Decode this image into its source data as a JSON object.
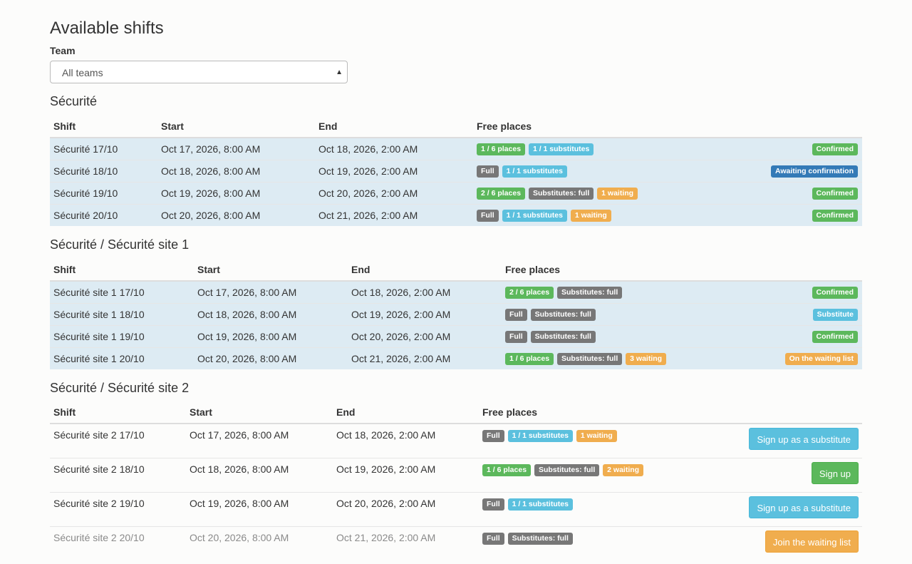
{
  "page": {
    "title": "Available shifts",
    "team_label": "Team",
    "team_select_value": "All teams"
  },
  "headers": {
    "shift": "Shift",
    "start": "Start",
    "end": "End",
    "free": "Free places"
  },
  "colors": {
    "green": "#5cb85c",
    "cyan": "#5bc0de",
    "gray": "#777777",
    "orange": "#f0ad4e",
    "blue": "#337ab7",
    "row_highlight": "#ddebf3"
  },
  "sections": [
    {
      "title": "Sécurité",
      "rows": [
        {
          "shift": "Sécurité 17/10",
          "start": "Oct 17, 2026, 8:00 AM",
          "end": "Oct 18, 2026, 2:00 AM",
          "badges": [
            {
              "text": "1 / 6 places",
              "color": "green"
            },
            {
              "text": "1 / 1 substitutes",
              "color": "cyan"
            }
          ],
          "status": {
            "text": "Confirmed",
            "color": "green"
          }
        },
        {
          "shift": "Sécurité 18/10",
          "start": "Oct 18, 2026, 8:00 AM",
          "end": "Oct 19, 2026, 2:00 AM",
          "badges": [
            {
              "text": "Full",
              "color": "gray"
            },
            {
              "text": "1 / 1 substitutes",
              "color": "cyan"
            }
          ],
          "status": {
            "text": "Awaiting confirmation",
            "color": "blue"
          }
        },
        {
          "shift": "Sécurité 19/10",
          "start": "Oct 19, 2026, 8:00 AM",
          "end": "Oct 20, 2026, 2:00 AM",
          "badges": [
            {
              "text": "2 / 6 places",
              "color": "green"
            },
            {
              "text": "Substitutes: full",
              "color": "gray"
            },
            {
              "text": "1 waiting",
              "color": "orange"
            }
          ],
          "status": {
            "text": "Confirmed",
            "color": "green"
          }
        },
        {
          "shift": "Sécurité 20/10",
          "start": "Oct 20, 2026, 8:00 AM",
          "end": "Oct 21, 2026, 2:00 AM",
          "badges": [
            {
              "text": "Full",
              "color": "gray"
            },
            {
              "text": "1 / 1 substitutes",
              "color": "cyan"
            },
            {
              "text": "1 waiting",
              "color": "orange"
            }
          ],
          "status": {
            "text": "Confirmed",
            "color": "green"
          }
        }
      ]
    },
    {
      "title": "Sécurité / Sécurité site 1",
      "rows": [
        {
          "shift": "Sécurité site 1 17/10",
          "start": "Oct 17, 2026, 8:00 AM",
          "end": "Oct 18, 2026, 2:00 AM",
          "badges": [
            {
              "text": "2 / 6 places",
              "color": "green"
            },
            {
              "text": "Substitutes: full",
              "color": "gray"
            }
          ],
          "status": {
            "text": "Confirmed",
            "color": "green"
          }
        },
        {
          "shift": "Sécurité site 1 18/10",
          "start": "Oct 18, 2026, 8:00 AM",
          "end": "Oct 19, 2026, 2:00 AM",
          "badges": [
            {
              "text": "Full",
              "color": "gray"
            },
            {
              "text": "Substitutes: full",
              "color": "gray"
            }
          ],
          "status": {
            "text": "Substitute",
            "color": "cyan"
          }
        },
        {
          "shift": "Sécurité site 1 19/10",
          "start": "Oct 19, 2026, 8:00 AM",
          "end": "Oct 20, 2026, 2:00 AM",
          "badges": [
            {
              "text": "Full",
              "color": "gray"
            },
            {
              "text": "Substitutes: full",
              "color": "gray"
            }
          ],
          "status": {
            "text": "Confirmed",
            "color": "green"
          }
        },
        {
          "shift": "Sécurité site 1 20/10",
          "start": "Oct 20, 2026, 8:00 AM",
          "end": "Oct 21, 2026, 2:00 AM",
          "badges": [
            {
              "text": "1 / 6 places",
              "color": "green"
            },
            {
              "text": "Substitutes: full",
              "color": "gray"
            },
            {
              "text": "3 waiting",
              "color": "orange"
            }
          ],
          "status": {
            "text": "On the waiting list",
            "color": "orange"
          }
        }
      ]
    },
    {
      "title": "Sécurité / Sécurité site 2",
      "rows": [
        {
          "shift": "Sécurité site 2 17/10",
          "start": "Oct 17, 2026, 8:00 AM",
          "end": "Oct 18, 2026, 2:00 AM",
          "badges": [
            {
              "text": "Full",
              "color": "gray"
            },
            {
              "text": "1 / 1 substitutes",
              "color": "cyan"
            },
            {
              "text": "1 waiting",
              "color": "orange"
            }
          ],
          "action": {
            "text": "Sign up as a substitute",
            "style": "info"
          }
        },
        {
          "shift": "Sécurité site 2 18/10",
          "start": "Oct 18, 2026, 8:00 AM",
          "end": "Oct 19, 2026, 2:00 AM",
          "badges": [
            {
              "text": "1 / 6 places",
              "color": "green"
            },
            {
              "text": "Substitutes: full",
              "color": "gray"
            },
            {
              "text": "2 waiting",
              "color": "orange"
            }
          ],
          "action": {
            "text": "Sign up",
            "style": "success"
          }
        },
        {
          "shift": "Sécurité site 2 19/10",
          "start": "Oct 19, 2026, 8:00 AM",
          "end": "Oct 20, 2026, 2:00 AM",
          "badges": [
            {
              "text": "Full",
              "color": "gray"
            },
            {
              "text": "1 / 1 substitutes",
              "color": "cyan"
            }
          ],
          "action": {
            "text": "Sign up as a substitute",
            "style": "info"
          }
        },
        {
          "shift": "Sécurité site 2 20/10",
          "start": "Oct 20, 2026, 8:00 AM",
          "end": "Oct 21, 2026, 2:00 AM",
          "badges": [
            {
              "text": "Full",
              "color": "gray"
            },
            {
              "text": "Substitutes: full",
              "color": "gray"
            }
          ],
          "action": {
            "text": "Join the waiting list",
            "style": "warning"
          },
          "muted": true
        }
      ]
    }
  ]
}
